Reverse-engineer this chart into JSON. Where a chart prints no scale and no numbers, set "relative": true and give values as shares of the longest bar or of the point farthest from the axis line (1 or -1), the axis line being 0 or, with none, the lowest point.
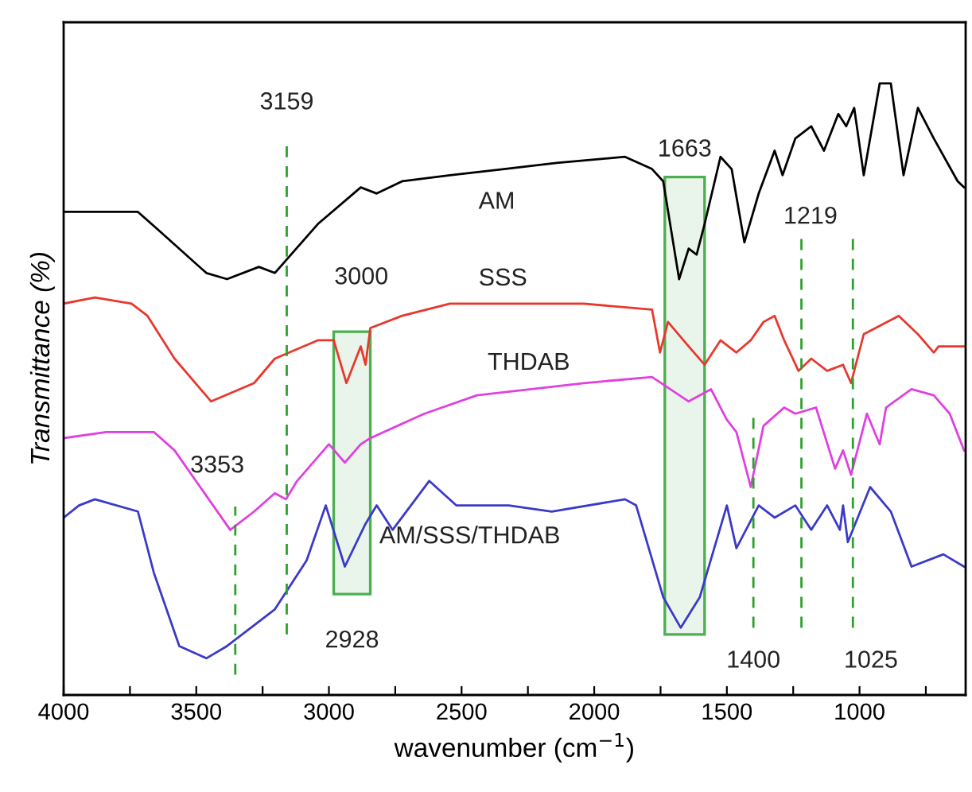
{
  "chart_data": {
    "type": "line",
    "relative": true,
    "xlabel": "wavenumber (cm$^{−1}$)",
    "ylabel": "Transmittance (%)",
    "xlim": [
      4000,
      600
    ],
    "xticks": [
      4000,
      {
        "value": 3750,
        "label": null
      },
      3500,
      {
        "value": 3250,
        "label": null
      },
      3000,
      {
        "value": 2750,
        "label": null
      },
      2500,
      {
        "value": 2250,
        "label": null
      },
      2000,
      {
        "value": 1750,
        "label": null
      },
      1500,
      {
        "value": 1250,
        "label": null
      },
      1000,
      {
        "value": 750,
        "label": null
      }
    ],
    "tick_labels": "x",
    "grid": false,
    "legend": false,
    "series": [
      {
        "name": "AM",
        "color": "#000000",
        "x": [
          4000,
          3720,
          3642,
          3462,
          3384,
          3264,
          3204,
          3042,
          2880,
          2820,
          2724,
          2544,
          2340,
          2142,
          1884,
          1782,
          1740,
          1680,
          1644,
          1614,
          1584,
          1524,
          1482,
          1434,
          1380,
          1320,
          1290,
          1242,
          1182,
          1134,
          1080,
          1050,
          1020,
          984,
          924,
          882,
          834,
          780,
          720,
          630,
          606
        ],
        "values": [
          0.79,
          0.79,
          0.76,
          0.69,
          0.68,
          0.7,
          0.69,
          0.77,
          0.83,
          0.82,
          0.84,
          0.85,
          0.86,
          0.87,
          0.88,
          0.86,
          0.84,
          0.68,
          0.73,
          0.72,
          0.77,
          0.88,
          0.86,
          0.74,
          0.82,
          0.89,
          0.85,
          0.91,
          0.93,
          0.89,
          0.95,
          0.93,
          0.96,
          0.85,
          1.0,
          1.0,
          0.85,
          0.96,
          0.91,
          0.84,
          0.83
        ]
      },
      {
        "name": "SSS",
        "color": "#e8382e",
        "x": [
          4000,
          3882,
          3744,
          3684,
          3582,
          3444,
          3282,
          3204,
          3042,
          2982,
          2934,
          2880,
          2862,
          2844,
          2724,
          2544,
          2340,
          2040,
          1782,
          1752,
          1722,
          1644,
          1584,
          1524,
          1464,
          1410,
          1362,
          1320,
          1284,
          1230,
          1182,
          1122,
          1062,
          1032,
          984,
          852,
          780,
          720,
          702,
          606
        ],
        "values": [
          0.64,
          0.65,
          0.64,
          0.62,
          0.55,
          0.48,
          0.51,
          0.55,
          0.58,
          0.58,
          0.51,
          0.57,
          0.54,
          0.6,
          0.62,
          0.64,
          0.64,
          0.64,
          0.63,
          0.56,
          0.61,
          0.57,
          0.54,
          0.58,
          0.56,
          0.58,
          0.61,
          0.62,
          0.58,
          0.53,
          0.55,
          0.53,
          0.54,
          0.51,
          0.59,
          0.62,
          0.59,
          0.56,
          0.57,
          0.57
        ]
      },
      {
        "name": "THDAB",
        "color": "#e040e0",
        "x": [
          4000,
          3840,
          3660,
          3582,
          3372,
          3282,
          3204,
          3162,
          3120,
          3000,
          2940,
          2880,
          2844,
          2640,
          2442,
          2040,
          1782,
          1644,
          1560,
          1500,
          1464,
          1410,
          1362,
          1284,
          1242,
          1164,
          1092,
          1062,
          1032,
          972,
          924,
          900,
          804,
          720,
          660,
          606
        ],
        "values": [
          0.42,
          0.43,
          0.43,
          0.4,
          0.27,
          0.3,
          0.33,
          0.32,
          0.35,
          0.41,
          0.38,
          0.41,
          0.42,
          0.46,
          0.49,
          0.51,
          0.52,
          0.48,
          0.5,
          0.45,
          0.43,
          0.34,
          0.44,
          0.47,
          0.46,
          0.47,
          0.37,
          0.4,
          0.36,
          0.46,
          0.41,
          0.47,
          0.5,
          0.49,
          0.46,
          0.4
        ]
      },
      {
        "name": "AM/SSS/THDAB",
        "color": "#3a3ac8",
        "x": [
          4000,
          3942,
          3882,
          3720,
          3660,
          3564,
          3462,
          3384,
          3204,
          3084,
          3012,
          2940,
          2862,
          2820,
          2760,
          2622,
          2520,
          2322,
          2160,
          1884,
          1842,
          1740,
          1674,
          1602,
          1500,
          1464,
          1380,
          1320,
          1242,
          1182,
          1122,
          1074,
          1062,
          1044,
          960,
          882,
          804,
          684,
          606
        ],
        "values": [
          0.29,
          0.31,
          0.32,
          0.3,
          0.2,
          0.08,
          0.06,
          0.08,
          0.14,
          0.22,
          0.31,
          0.21,
          0.28,
          0.31,
          0.27,
          0.35,
          0.31,
          0.31,
          0.3,
          0.32,
          0.31,
          0.16,
          0.11,
          0.16,
          0.31,
          0.24,
          0.31,
          0.29,
          0.31,
          0.27,
          0.31,
          0.27,
          0.31,
          0.25,
          0.34,
          0.3,
          0.21,
          0.23,
          0.21
        ]
      }
    ],
    "ref_lines": [
      {
        "axis": "x",
        "value": 3159,
        "label": "3159",
        "color": "#2ca02c",
        "line_style": "dashed"
      },
      {
        "axis": "x",
        "value": 3353,
        "label": "3353",
        "color": "#2ca02c",
        "line_style": "dashed"
      },
      {
        "axis": "x",
        "value": 1400,
        "label": "1400",
        "color": "#2ca02c",
        "line_style": "dashed"
      },
      {
        "axis": "x",
        "value": 1219,
        "label": "1219",
        "color": "#2ca02c",
        "line_style": "dashed"
      },
      {
        "axis": "x",
        "value": 1025,
        "label": "1025",
        "color": "#2ca02c",
        "line_style": "dashed"
      }
    ],
    "bands": [
      {
        "axis": "x",
        "from": 2982,
        "to": 2844,
        "label": "2928",
        "color": "#4caf50"
      },
      {
        "axis": "x",
        "from": 1734,
        "to": 1584,
        "label": "1663",
        "color": "#4caf50"
      }
    ],
    "annotations": [
      "3000"
    ]
  }
}
